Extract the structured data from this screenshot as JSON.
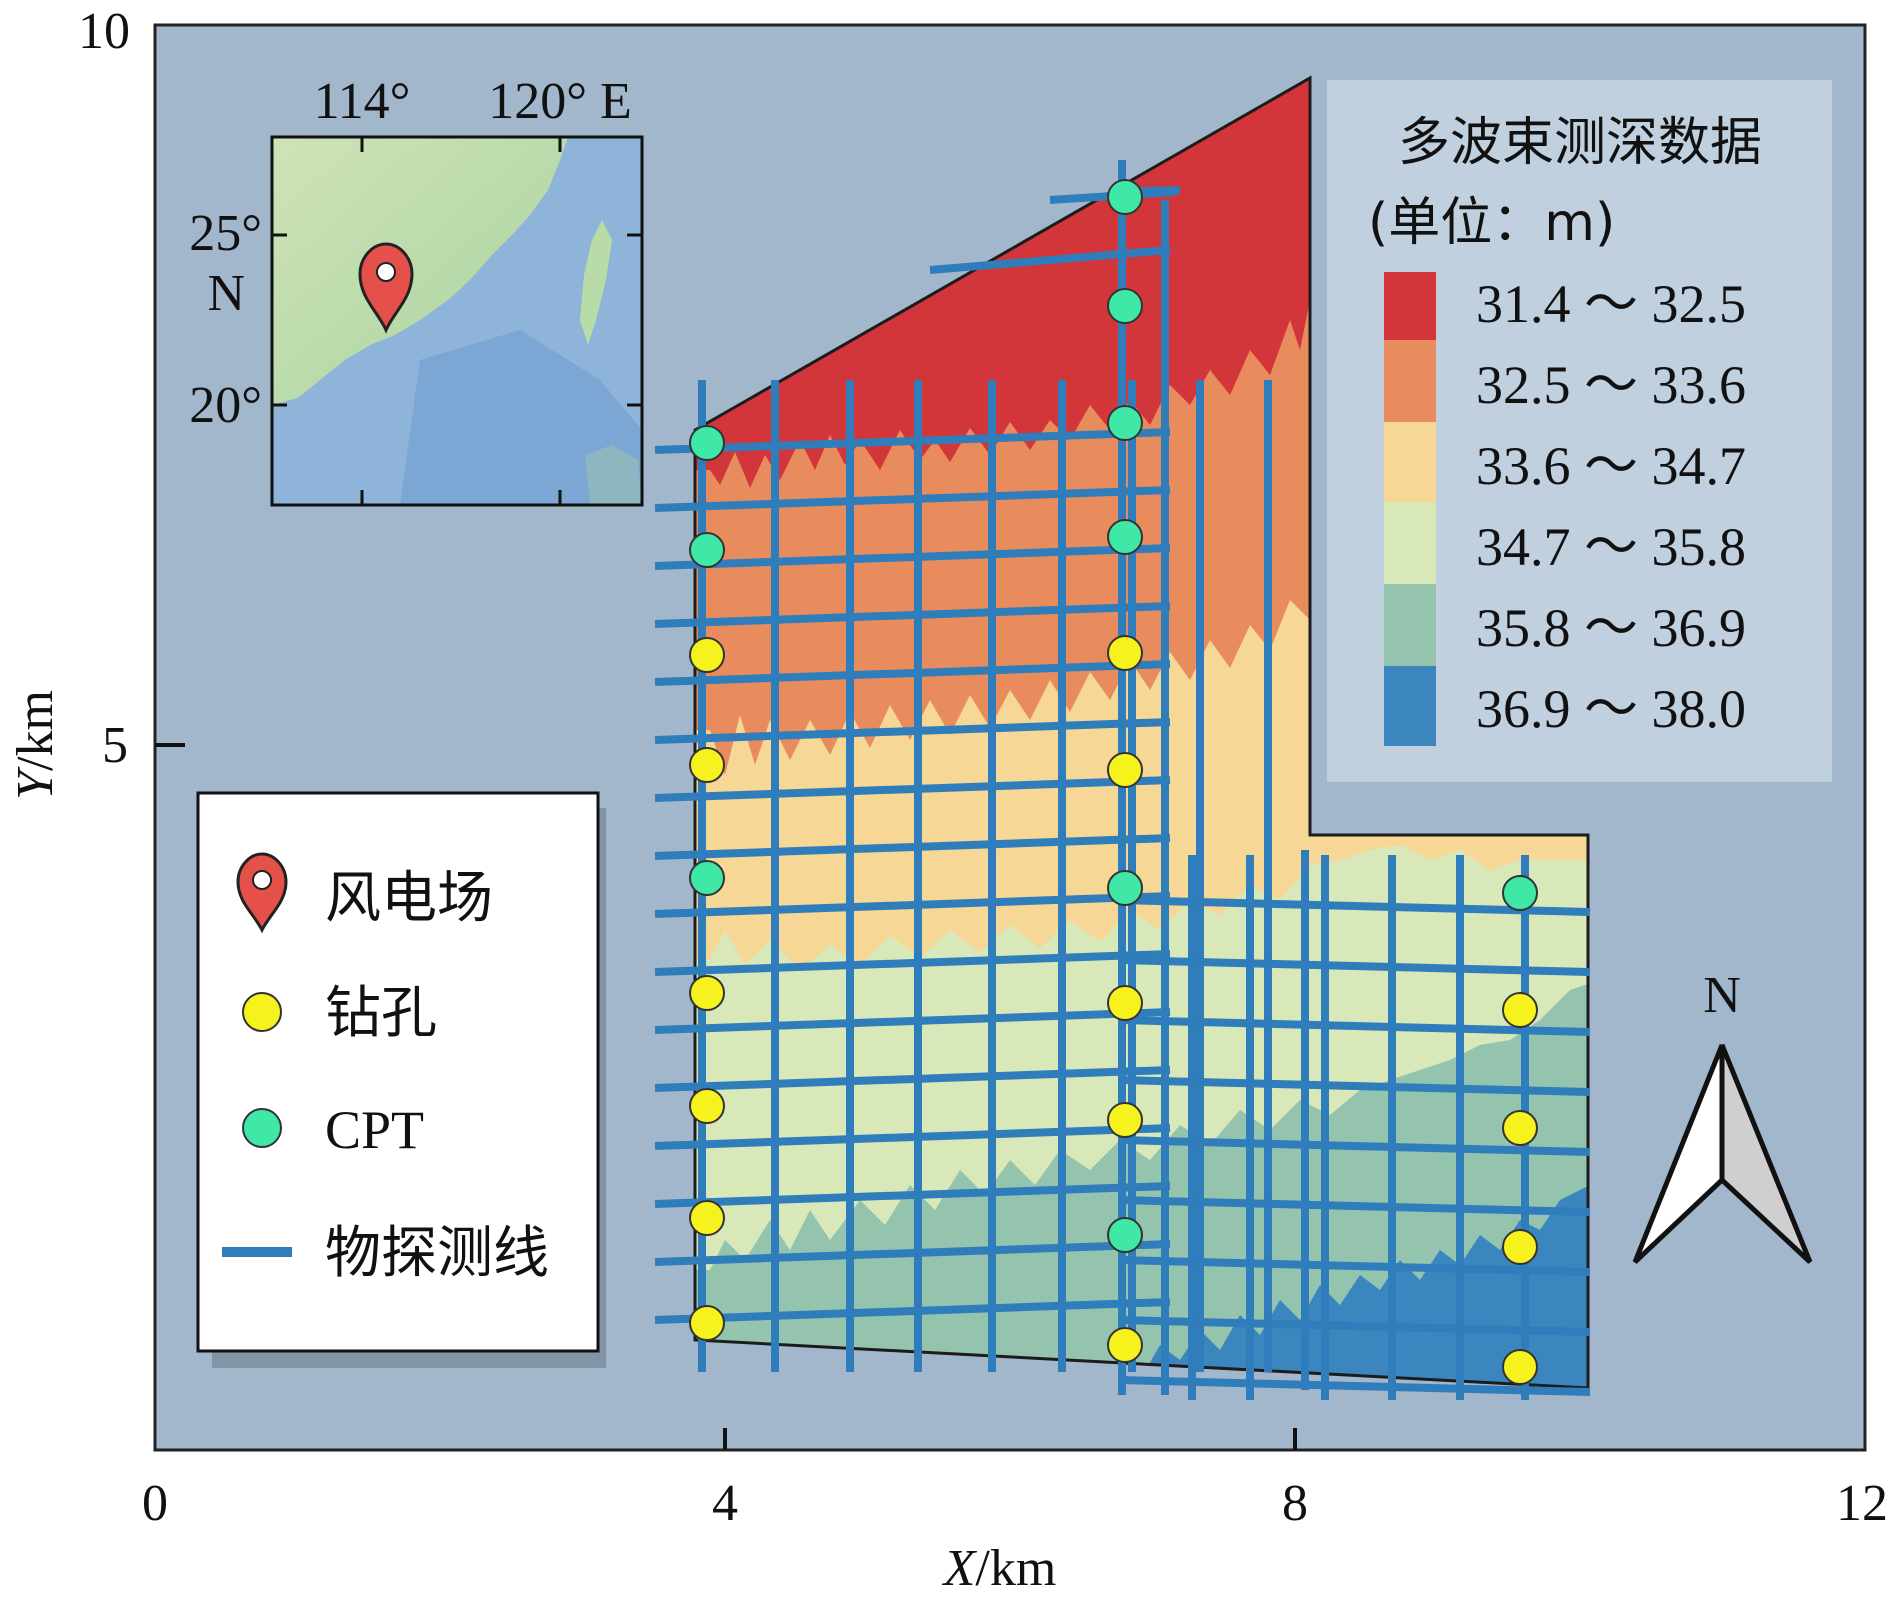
{
  "axes": {
    "x_title_italic": "X",
    "x_title_unit": "/km",
    "y_title_italic": "Y",
    "y_title_unit": "/km",
    "x_ticks": [
      "0",
      "4",
      "8",
      "12"
    ],
    "y_ticks": [
      "5",
      "10"
    ]
  },
  "inset": {
    "lon_labels": [
      "114°",
      "120° E"
    ],
    "lat_labels": [
      "25°",
      "N",
      "20°"
    ]
  },
  "depth_legend": {
    "title": "多波束测深数据",
    "unit": "(单位：m)",
    "classes": [
      {
        "range": "31.4 ～ 32.5",
        "color": "#d2353a"
      },
      {
        "range": "32.5 ～ 33.6",
        "color": "#e98c5d"
      },
      {
        "range": "33.6 ～ 34.7",
        "color": "#f6d796"
      },
      {
        "range": "34.7 ～ 35.8",
        "color": "#d9e8b8"
      },
      {
        "range": "35.8 ～ 36.9",
        "color": "#94c4ad"
      },
      {
        "range": "36.9 ～ 38.0",
        "color": "#3b86bf"
      }
    ]
  },
  "key_legend": {
    "items": [
      {
        "label": "风电场",
        "icon": "map-pin-icon"
      },
      {
        "label": "钻孔",
        "icon": "yellow-circle-icon"
      },
      {
        "label": "CPT",
        "icon": "green-circle-icon"
      },
      {
        "label": "物探测线",
        "icon": "blue-line-icon"
      }
    ]
  },
  "north_arrow": {
    "label": "N"
  },
  "colors": {
    "background": "#a3b7cc",
    "survey_line": "#2f7dbb",
    "borehole": "#f6f21d",
    "cpt": "#3fe8a6"
  }
}
